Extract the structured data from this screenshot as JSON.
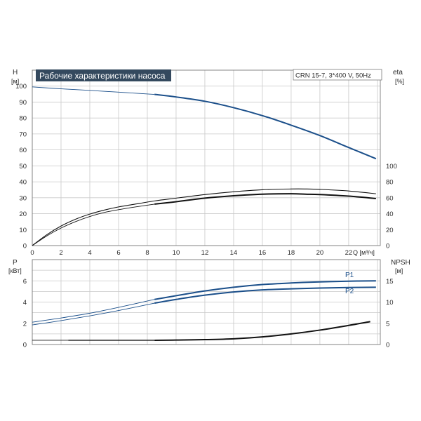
{
  "colors": {
    "blue": "#1b4f8a",
    "black": "#111111",
    "title_bg": "#34495e",
    "grid": "#c9c9c9"
  },
  "chart_data": [
    {
      "id": "head",
      "type": "line",
      "title": "Рабочие характеристики насоса",
      "legend_box": "CRN 15-7, 3*400 V, 50Hz",
      "x_axis": {
        "label": "Q [м³/ч]",
        "ticks": [
          "0",
          "2",
          "4",
          "6",
          "8",
          "10",
          "12",
          "14",
          "16",
          "18",
          "20",
          "22"
        ],
        "lim": [
          0,
          24.2
        ]
      },
      "y_axis_left": {
        "label_top": "H",
        "label_unit": "[м]",
        "ticks": [
          "0",
          "10",
          "20",
          "30",
          "40",
          "50",
          "60",
          "70",
          "80",
          "90",
          "100"
        ],
        "lim": [
          0,
          110
        ]
      },
      "y_axis_right": {
        "label_top": "eta",
        "label_unit": "[%]",
        "ticks": [
          "0",
          "20",
          "40",
          "60",
          "80",
          "100"
        ],
        "lim": [
          0,
          220
        ]
      },
      "grid": true,
      "series": [
        {
          "name": "H",
          "axis": "left",
          "color": "#1b4f8a",
          "x": [
            0,
            2,
            4,
            6,
            8.5,
            10,
            12,
            14,
            16,
            18,
            20,
            22,
            23.9
          ],
          "y": [
            99.5,
            98.3,
            97.3,
            96.2,
            94.8,
            93.2,
            90.5,
            86.5,
            81.5,
            75.5,
            69,
            61.5,
            54.5
          ],
          "bold_from": 8.5
        },
        {
          "name": "eta",
          "axis": "right",
          "color": "#111111",
          "x": [
            0,
            1,
            2,
            3,
            4,
            5,
            6,
            7,
            8.5,
            10,
            12,
            14,
            16,
            18,
            19,
            20,
            22,
            23.9
          ],
          "y": [
            0,
            12,
            22,
            30,
            36.5,
            41.5,
            45,
            48,
            52,
            55,
            59.5,
            62.5,
            64.5,
            65,
            64.5,
            64,
            62,
            59
          ],
          "bold_from": 8.5
        },
        {
          "name": "eta_total",
          "axis": "right",
          "color": "#111111",
          "x": [
            0,
            1,
            2,
            3,
            4,
            5,
            6,
            7,
            8.5,
            10,
            12,
            14,
            16,
            18,
            19,
            20,
            22,
            23.9
          ],
          "y": [
            0,
            13.5,
            24.5,
            33,
            39.5,
            44.5,
            48.5,
            51.5,
            56,
            59.5,
            64,
            67.5,
            70,
            71,
            71,
            70.5,
            68.5,
            65
          ],
          "bold_from": null
        }
      ]
    },
    {
      "id": "power",
      "type": "line",
      "x_axis": {
        "lim": [
          0,
          24.2
        ]
      },
      "y_axis_left": {
        "label_top": "P",
        "label_unit": "[кВт]",
        "ticks": [
          "0",
          "2",
          "4",
          "6"
        ],
        "lim": [
          0,
          8
        ]
      },
      "y_axis_right": {
        "label_top": "NPSH",
        "label_unit": "[м]",
        "ticks": [
          "0",
          "5",
          "10",
          "15"
        ],
        "lim": [
          0,
          20
        ]
      },
      "grid": true,
      "series": [
        {
          "name": "P1",
          "axis": "left",
          "color": "#1b4f8a",
          "x": [
            0,
            2,
            4,
            6,
            8.5,
            10,
            12,
            14,
            16,
            18,
            20,
            22,
            23.9
          ],
          "y": [
            2.1,
            2.5,
            2.95,
            3.5,
            4.25,
            4.6,
            5.05,
            5.4,
            5.65,
            5.8,
            5.9,
            5.97,
            6.0
          ],
          "bold_from": 8.5
        },
        {
          "name": "P2",
          "axis": "left",
          "color": "#1b4f8a",
          "x": [
            0,
            2,
            4,
            6,
            8.5,
            10,
            12,
            14,
            16,
            18,
            20,
            22,
            23.9
          ],
          "y": [
            1.85,
            2.25,
            2.7,
            3.2,
            3.9,
            4.25,
            4.65,
            4.95,
            5.15,
            5.25,
            5.32,
            5.37,
            5.4
          ],
          "bold_from": 8.5
        },
        {
          "name": "NPSH",
          "axis": "right",
          "color": "#111111",
          "x": [
            0,
            2.5,
            4,
            6,
            8.5,
            10,
            12,
            14,
            16,
            18,
            20,
            22,
            23.5
          ],
          "y": [
            1.0,
            1.0,
            1.0,
            1.0,
            1.0,
            1.05,
            1.15,
            1.35,
            1.8,
            2.5,
            3.4,
            4.5,
            5.4
          ],
          "thin_until": 2.5,
          "bold_from": 8.5
        }
      ]
    }
  ]
}
